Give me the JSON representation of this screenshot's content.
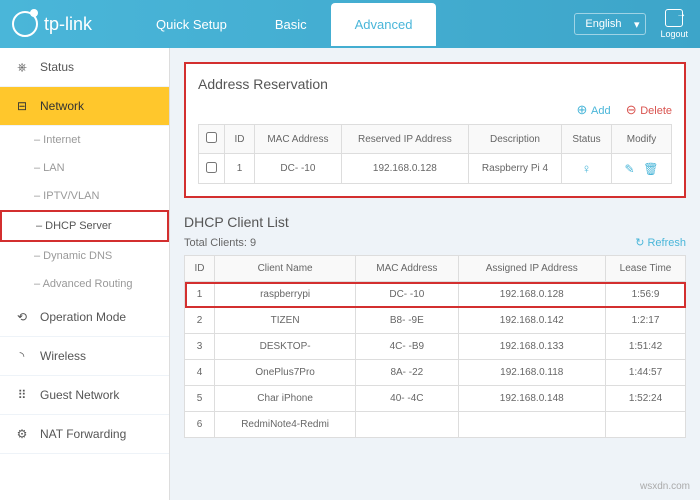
{
  "brand": "tp-link",
  "nav": {
    "quick": "Quick Setup",
    "basic": "Basic",
    "advanced": "Advanced"
  },
  "lang": "English",
  "logout": "Logout",
  "sidebar": {
    "status": "Status",
    "network": "Network",
    "subs": {
      "internet": "–  Internet",
      "lan": "–  LAN",
      "iptv": "–  IPTV/VLAN",
      "dhcp": "–  DHCP Server",
      "ddns": "–  Dynamic DNS",
      "routing": "–  Advanced Routing"
    },
    "opmode": "Operation Mode",
    "wireless": "Wireless",
    "guest": "Guest Network",
    "nat": "NAT Forwarding"
  },
  "reservation": {
    "title": "Address Reservation",
    "add": "Add",
    "delete": "Delete",
    "cols": {
      "id": "ID",
      "mac": "MAC Address",
      "ip": "Reserved IP Address",
      "desc": "Description",
      "status": "Status",
      "modify": "Modify"
    },
    "row": {
      "id": "1",
      "mac": "DC-                  -10",
      "ip": "192.168.0.128",
      "desc": "Raspberry Pi 4"
    }
  },
  "clients": {
    "title": "DHCP Client List",
    "total": "Total Clients: 9",
    "refresh": "Refresh",
    "cols": {
      "id": "ID",
      "name": "Client Name",
      "mac": "MAC Address",
      "ip": "Assigned IP Address",
      "lease": "Lease Time"
    },
    "rows": [
      {
        "id": "1",
        "name": "raspberrypi",
        "mac": "DC-                  -10",
        "ip": "192.168.0.128",
        "lease": "1:56:9"
      },
      {
        "id": "2",
        "name": "TIZEN",
        "mac": "B8-                -9E",
        "ip": "192.168.0.142",
        "lease": "1:2:17"
      },
      {
        "id": "3",
        "name": "DESKTOP-",
        "mac": "4C-                -B9",
        "ip": "192.168.0.133",
        "lease": "1:51:42"
      },
      {
        "id": "4",
        "name": "OnePlus7Pro",
        "mac": "8A-                -22",
        "ip": "192.168.0.118",
        "lease": "1:44:57"
      },
      {
        "id": "5",
        "name": "Char       iPhone",
        "mac": "40-                -4C",
        "ip": "192.168.0.148",
        "lease": "1:52:24"
      },
      {
        "id": "6",
        "name": "RedmiNote4-Redmi",
        "mac": "",
        "ip": "",
        "lease": ""
      }
    ]
  },
  "watermark": "wsxdn.com"
}
